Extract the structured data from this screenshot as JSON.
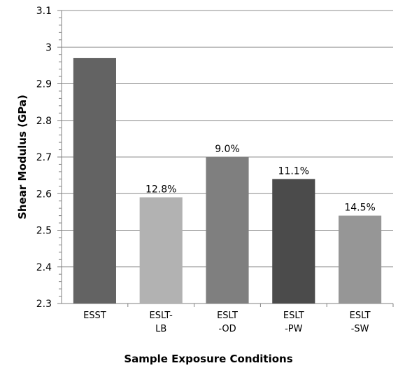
{
  "chart_data": {
    "type": "bar",
    "categories": [
      [
        "ESST"
      ],
      [
        "ESLT-",
        "LB"
      ],
      [
        "ESLT",
        "-OD"
      ],
      [
        "ESLT",
        "-PW"
      ],
      [
        "ESLT",
        "-SW"
      ]
    ],
    "values": [
      2.97,
      2.59,
      2.7,
      2.64,
      2.54
    ],
    "data_labels": [
      "",
      "12.8%",
      "9.0%",
      "11.1%",
      "14.5%"
    ],
    "bar_colors": [
      "#636363",
      "#b2b2b2",
      "#7f7f7f",
      "#4b4b4b",
      "#969696"
    ],
    "title": "",
    "xlabel": "Sample Exposure Conditions",
    "ylabel": "Shear Modulus (GPa)",
    "ylim": [
      2.3,
      3.1
    ],
    "yticks": [
      "2.3",
      "2.4",
      "2.5",
      "2.6",
      "2.7",
      "2.8",
      "2.9",
      "3",
      "3.1"
    ],
    "minor_ticks_per_major": 5,
    "gridlines": true,
    "legend": "none"
  }
}
